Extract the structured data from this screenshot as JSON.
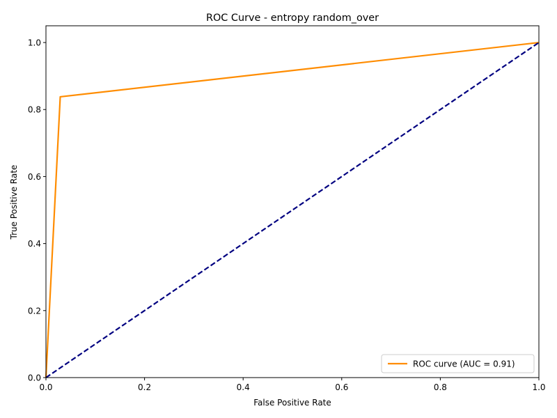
{
  "chart_data": {
    "type": "line",
    "title": "ROC Curve - entropy random_over",
    "xlabel": "False Positive Rate",
    "ylabel": "True Positive Rate",
    "xlim": [
      0.0,
      1.0
    ],
    "ylim": [
      0.0,
      1.05
    ],
    "xticks": [
      0.0,
      0.2,
      0.4,
      0.6,
      0.8,
      1.0
    ],
    "yticks": [
      0.0,
      0.2,
      0.4,
      0.6,
      0.8,
      1.0
    ],
    "xtick_labels": [
      "0.0",
      "0.2",
      "0.4",
      "0.6",
      "0.8",
      "1.0"
    ],
    "ytick_labels": [
      "0.0",
      "0.2",
      "0.4",
      "0.6",
      "0.8",
      "1.0"
    ],
    "grid": false,
    "legend_position": "lower-right",
    "series": [
      {
        "name": "ROC curve (AUC = 0.91)",
        "color": "#ff8c00",
        "style": "solid",
        "x": [
          0.0,
          0.029,
          1.0
        ],
        "y": [
          0.0,
          0.838,
          1.0
        ]
      },
      {
        "color": "#000080",
        "style": "dashed",
        "x": [
          0.0,
          1.0
        ],
        "y": [
          0.0,
          1.0
        ]
      }
    ]
  }
}
